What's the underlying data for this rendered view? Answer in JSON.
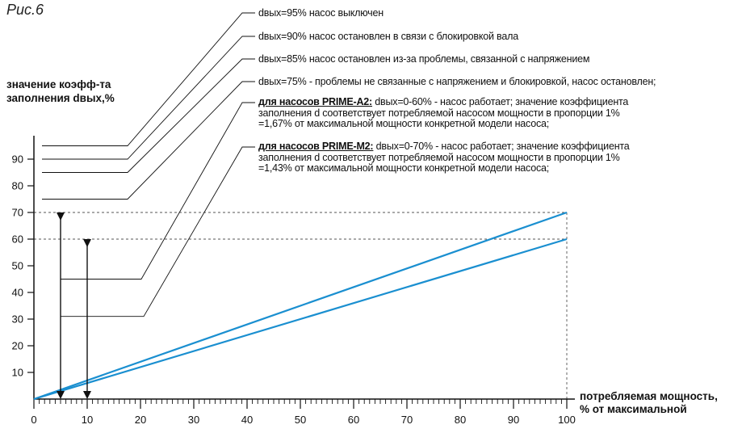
{
  "figure_label": "Рис.6",
  "chart_data": {
    "type": "line",
    "ylabel_line1": "значение коэфф-та",
    "ylabel_line2": "заполнения dвых,%",
    "xlabel_line1": "потребляемая мощность,",
    "xlabel_line2": "% от максимальной",
    "xlim": [
      0,
      100
    ],
    "ylim": [
      0,
      95
    ],
    "xticks": [
      0,
      10,
      20,
      30,
      40,
      50,
      60,
      70,
      80,
      90,
      100
    ],
    "yticks": [
      10,
      20,
      30,
      40,
      50,
      60,
      70,
      80,
      90
    ],
    "grid": false,
    "series": [
      {
        "x": [
          0,
          100
        ],
        "y": [
          0,
          70
        ],
        "color": "#1a8fd0"
      },
      {
        "x": [
          0,
          100
        ],
        "y": [
          0,
          60
        ],
        "color": "#1a8fd0"
      }
    ],
    "reference_levels": [
      95,
      90,
      85,
      75
    ],
    "annotations": [
      {
        "id": "a95",
        "text": "dвых=95% насос выключен"
      },
      {
        "id": "a90",
        "text": "dвых=90% насос остановлен в связи с блокировкой вала"
      },
      {
        "id": "a85",
        "text": "dвых=85% насос остановлен из-за проблемы, связанной с напряжением"
      },
      {
        "id": "a75",
        "text": "dвых=75% - проблемы не связанные с напряжением и блокировкой, насос остановлен;"
      },
      {
        "id": "a2",
        "bold": "для насосов PRIME-A2:",
        "text": " dвых=0-60% - насос работает; значение коэффициента",
        "line2": "заполнения d соответствует потребляемой насосом мощности в пропорции 1%",
        "line3": "=1,67% от максимальной мощности конкретной модели насоса;"
      },
      {
        "id": "m2",
        "bold": "для насосов PRIME-M2:",
        "text": " dвых=0-70% - насос работает; значение коэффициента",
        "line2": "заполнения d соответствует потребляемой насосом мощности в пропорции 1%",
        "line3": "=1,43% от максимальной мощности конкретной модели насоса;"
      }
    ]
  }
}
